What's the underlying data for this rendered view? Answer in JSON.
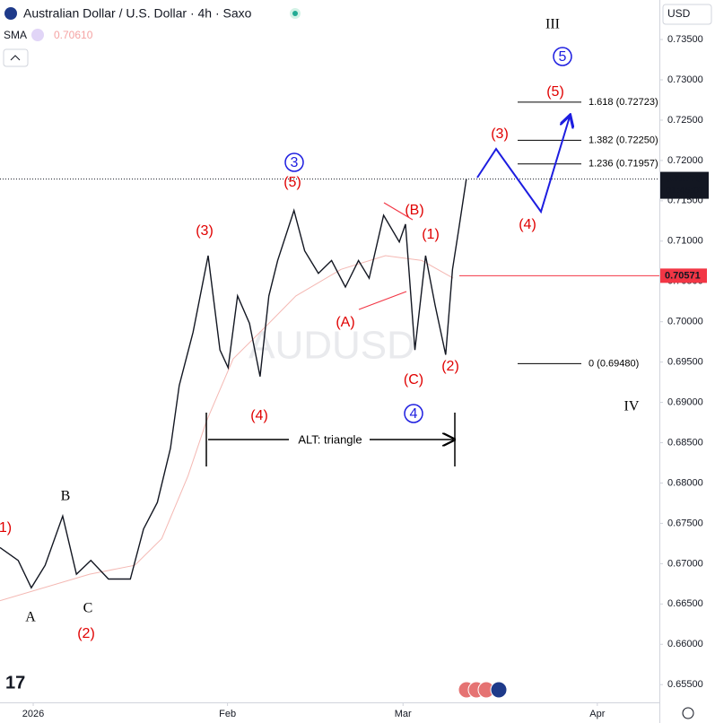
{
  "header": {
    "title": "Australian Dollar / U.S. Dollar · 4h · Saxo",
    "indicator": "SMA",
    "indicator_value": "0.70610",
    "currency": "USD",
    "watermark": "AUDUSD"
  },
  "chart_data": {
    "type": "line",
    "series": [
      {
        "name": "Australian Dollar / U.S. Dollar",
        "color": "#131722",
        "x": [
          -5.3,
          -2.4,
          -0.3,
          1.9,
          4.7,
          6.9,
          9.2,
          12.0,
          15.5,
          17.6,
          19.8,
          21.9,
          23.3,
          25.5,
          27.9,
          29.8,
          31.1,
          32.6,
          34.5,
          36.2,
          37.6,
          39.0,
          41.6,
          43.3,
          45.5,
          47.6,
          49.8,
          51.9,
          53.6,
          55.9,
          58.4,
          59.4,
          60.9,
          62.6,
          64.1,
          65.8,
          66.9,
          67.9,
          69.1
        ],
        "values": [
          0.672,
          0.6704,
          0.667,
          0.6698,
          0.6759,
          0.6687,
          0.6704,
          0.6681,
          0.6681,
          0.6743,
          0.6776,
          0.6843,
          0.6921,
          0.6987,
          0.7082,
          0.6965,
          0.6943,
          0.7032,
          0.6998,
          0.6932,
          0.7032,
          0.7076,
          0.7138,
          0.7088,
          0.706,
          0.7076,
          0.7043,
          0.7076,
          0.7054,
          0.7132,
          0.7099,
          0.7121,
          0.6965,
          0.7082,
          0.7021,
          0.6959,
          0.7065,
          0.7115,
          0.7177
        ]
      },
      {
        "name": "SMA",
        "color": "#f4b8b3",
        "x": [
          -5.3,
          9.0,
          16.2,
          20.5,
          24.7,
          27.6,
          31.9,
          37.6,
          41.9,
          49.1,
          56.2,
          62.0,
          67.0
        ],
        "values": [
          0.6654,
          0.6687,
          0.6698,
          0.6731,
          0.6809,
          0.6876,
          0.6954,
          0.6998,
          0.7032,
          0.7065,
          0.7082,
          0.7076,
          0.7054
        ]
      }
    ],
    "xlim": [
      -5.3,
      99.9
    ],
    "xticks": [
      {
        "value": 0,
        "label": "2026"
      },
      {
        "value": 31,
        "label": "Feb"
      },
      {
        "value": 59,
        "label": "Mar"
      },
      {
        "value": 90,
        "label": "Apr"
      }
    ],
    "ylim": [
      0.6528,
      0.7399
    ],
    "yticks": [
      {
        "value": 0.655,
        "label": "0.65500"
      },
      {
        "value": 0.66,
        "label": "0.66000"
      },
      {
        "value": 0.665,
        "label": "0.66500"
      },
      {
        "value": 0.67,
        "label": "0.67000"
      },
      {
        "value": 0.675,
        "label": "0.67500"
      },
      {
        "value": 0.68,
        "label": "0.68000"
      },
      {
        "value": 0.685,
        "label": "0.68500"
      },
      {
        "value": 0.69,
        "label": "0.69000"
      },
      {
        "value": 0.695,
        "label": "0.69500"
      },
      {
        "value": 0.7,
        "label": "0.70000"
      },
      {
        "value": 0.705,
        "label": "0.70500"
      },
      {
        "value": 0.71,
        "label": "0.71000"
      },
      {
        "value": 0.715,
        "label": "0.71500"
      },
      {
        "value": 0.72,
        "label": "0.72000"
      },
      {
        "value": 0.725,
        "label": "0.72500"
      },
      {
        "value": 0.73,
        "label": "0.73000"
      },
      {
        "value": 0.735,
        "label": "0.73500"
      }
    ],
    "last_price": {
      "value": 0.7177,
      "label": "0.71770"
    },
    "countdown": "01:45:07",
    "horizontal_line": {
      "value": 0.70571,
      "label": "0.70571",
      "color": "#f23645"
    },
    "fib_levels": [
      {
        "value": 0.72723,
        "label": "1.618 (0.72723)"
      },
      {
        "value": 0.7225,
        "label": "1.382 (0.72250)"
      },
      {
        "value": 0.71957,
        "label": "1.236 (0.71957)"
      },
      {
        "value": 0.6948,
        "label": "0 (0.69480)"
      }
    ],
    "annotations": [
      "III",
      "5",
      "(5)",
      "(3)",
      "(4)",
      "3",
      "(5)",
      "(B)",
      "(1)",
      "(3)",
      "(A)",
      "(C)",
      "(2)",
      "(4)",
      "4",
      "IV",
      "1)",
      "B",
      "A",
      "C",
      "(2)",
      "ALT: triangle"
    ]
  }
}
